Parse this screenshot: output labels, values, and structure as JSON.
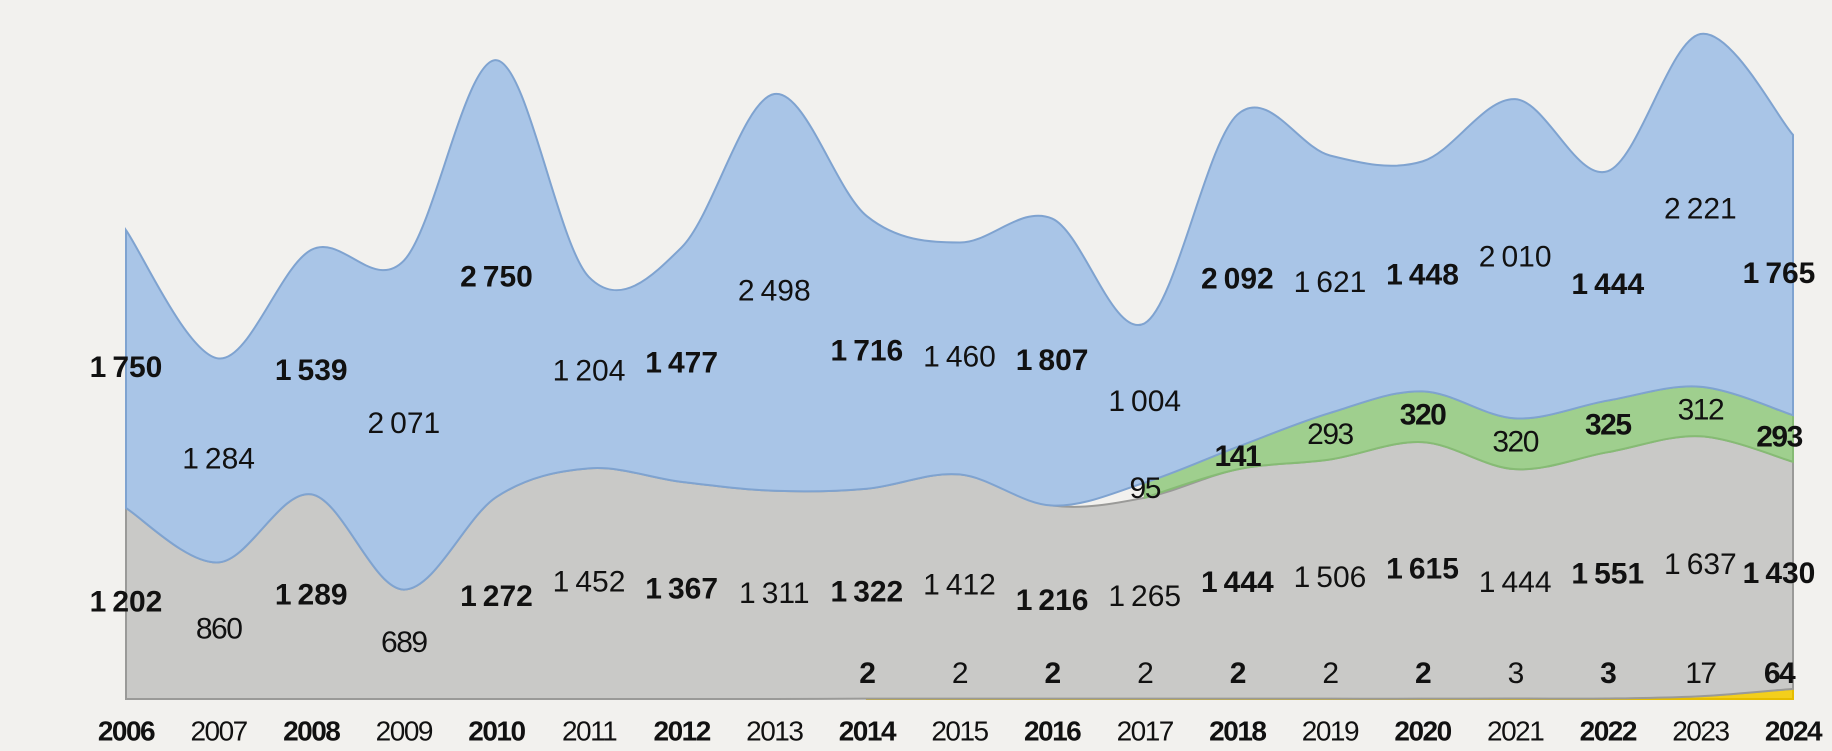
{
  "chart_data": {
    "type": "stacked-area",
    "categories": [
      "2006",
      "2007",
      "2008",
      "2009",
      "2010",
      "2011",
      "2012",
      "2013",
      "2014",
      "2015",
      "2016",
      "2017",
      "2018",
      "2019",
      "2020",
      "2021",
      "2022",
      "2023",
      "2024"
    ],
    "series": [
      {
        "color": "#f3cf1c",
        "values": [
          null,
          null,
          null,
          null,
          null,
          null,
          null,
          null,
          2,
          2,
          2,
          2,
          2,
          2,
          2,
          3,
          3,
          17,
          64
        ]
      },
      {
        "color": "#c9c9c7",
        "values": [
          1202,
          860,
          1289,
          689,
          1272,
          1452,
          1367,
          1311,
          1322,
          1412,
          1216,
          1265,
          1444,
          1506,
          1615,
          1444,
          1551,
          1637,
          1430
        ],
        "value_labels": [
          "1 202",
          "860",
          "1 289",
          "689",
          "1 272",
          "1 452",
          "1 367",
          "1 311",
          "1 322",
          "1 412",
          "1 216",
          "1 265",
          "1 444",
          "1 506",
          "1 615",
          "1 444",
          "1 551",
          "1 637",
          "1 430"
        ]
      },
      {
        "color": "#9fcf8e",
        "values": [
          null,
          null,
          null,
          null,
          null,
          null,
          null,
          null,
          null,
          null,
          null,
          95,
          141,
          293,
          320,
          320,
          325,
          312,
          293
        ]
      },
      {
        "color": "#a9c5e7",
        "values": [
          1750,
          1284,
          1539,
          2071,
          2750,
          1204,
          1477,
          2498,
          1716,
          1460,
          1807,
          1004,
          2092,
          1621,
          1448,
          2010,
          1444,
          2221,
          1765
        ],
        "value_labels": [
          "1 750",
          "1 284",
          "1 539",
          "2 071",
          "2 750",
          "1 204",
          "1 477",
          "2 498",
          "1 716",
          "1 460",
          "1 807",
          "1 004",
          "2 092",
          "1 621",
          "1 448",
          "2 010",
          "1 444",
          "2 221",
          "1 765"
        ]
      }
    ]
  }
}
